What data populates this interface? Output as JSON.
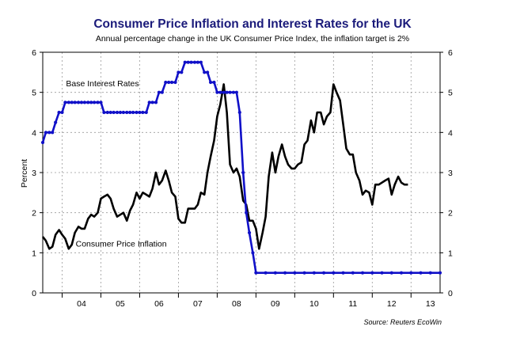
{
  "chart_data": {
    "type": "line",
    "title": "Consumer Price Inflation and Interest Rates for the UK",
    "subtitle": "Annual percentage change in the UK Consumer Price Index, the inflation target is 2%",
    "ylabel": "Percent",
    "source": "Source: Reuters EcoWin",
    "ylim": [
      0,
      6
    ],
    "xlim": [
      2003.5,
      2013.75
    ],
    "yticks": [
      "0",
      "1",
      "2",
      "3",
      "4",
      "5",
      "6"
    ],
    "xticks": [
      {
        "label": "04",
        "x": 2004.5
      },
      {
        "label": "05",
        "x": 2005.5
      },
      {
        "label": "06",
        "x": 2006.5
      },
      {
        "label": "07",
        "x": 2007.5
      },
      {
        "label": "08",
        "x": 2008.5
      },
      {
        "label": "09",
        "x": 2009.5
      },
      {
        "label": "10",
        "x": 2010.5
      },
      {
        "label": "11",
        "x": 2011.5
      },
      {
        "label": "12",
        "x": 2012.5
      },
      {
        "label": "13",
        "x": 2013.5
      }
    ],
    "grid": true,
    "series": [
      {
        "name": "Base Interest Rates",
        "color": "#1010c8",
        "marker": "dot",
        "points": [
          [
            2003.5,
            3.75
          ],
          [
            2003.58,
            4.0
          ],
          [
            2003.67,
            4.0
          ],
          [
            2003.75,
            4.0
          ],
          [
            2003.83,
            4.25
          ],
          [
            2003.92,
            4.5
          ],
          [
            2004.0,
            4.5
          ],
          [
            2004.08,
            4.75
          ],
          [
            2004.17,
            4.75
          ],
          [
            2004.25,
            4.75
          ],
          [
            2004.33,
            4.75
          ],
          [
            2004.42,
            4.75
          ],
          [
            2004.5,
            4.75
          ],
          [
            2004.58,
            4.75
          ],
          [
            2004.67,
            4.75
          ],
          [
            2004.75,
            4.75
          ],
          [
            2004.83,
            4.75
          ],
          [
            2004.92,
            4.75
          ],
          [
            2005.0,
            4.75
          ],
          [
            2005.08,
            4.5
          ],
          [
            2005.17,
            4.5
          ],
          [
            2005.25,
            4.5
          ],
          [
            2005.33,
            4.5
          ],
          [
            2005.42,
            4.5
          ],
          [
            2005.5,
            4.5
          ],
          [
            2005.58,
            4.5
          ],
          [
            2005.67,
            4.5
          ],
          [
            2005.75,
            4.5
          ],
          [
            2005.83,
            4.5
          ],
          [
            2005.92,
            4.5
          ],
          [
            2006.0,
            4.5
          ],
          [
            2006.08,
            4.5
          ],
          [
            2006.17,
            4.5
          ],
          [
            2006.25,
            4.75
          ],
          [
            2006.33,
            4.75
          ],
          [
            2006.42,
            4.75
          ],
          [
            2006.5,
            5.0
          ],
          [
            2006.58,
            5.0
          ],
          [
            2006.67,
            5.25
          ],
          [
            2006.75,
            5.25
          ],
          [
            2006.83,
            5.25
          ],
          [
            2006.92,
            5.25
          ],
          [
            2007.0,
            5.5
          ],
          [
            2007.08,
            5.5
          ],
          [
            2007.17,
            5.75
          ],
          [
            2007.25,
            5.75
          ],
          [
            2007.33,
            5.75
          ],
          [
            2007.42,
            5.75
          ],
          [
            2007.5,
            5.75
          ],
          [
            2007.58,
            5.75
          ],
          [
            2007.67,
            5.5
          ],
          [
            2007.75,
            5.5
          ],
          [
            2007.83,
            5.25
          ],
          [
            2007.92,
            5.25
          ],
          [
            2008.0,
            5.0
          ],
          [
            2008.08,
            5.0
          ],
          [
            2008.17,
            5.0
          ],
          [
            2008.25,
            5.0
          ],
          [
            2008.33,
            5.0
          ],
          [
            2008.42,
            5.0
          ],
          [
            2008.5,
            5.0
          ],
          [
            2008.58,
            4.5
          ],
          [
            2008.67,
            3.0
          ],
          [
            2008.75,
            2.0
          ],
          [
            2008.83,
            1.5
          ],
          [
            2008.92,
            1.0
          ],
          [
            2009.0,
            0.5
          ],
          [
            2009.25,
            0.5
          ],
          [
            2009.5,
            0.5
          ],
          [
            2009.75,
            0.5
          ],
          [
            2010.0,
            0.5
          ],
          [
            2010.25,
            0.5
          ],
          [
            2010.5,
            0.5
          ],
          [
            2010.75,
            0.5
          ],
          [
            2011.0,
            0.5
          ],
          [
            2011.25,
            0.5
          ],
          [
            2011.5,
            0.5
          ],
          [
            2011.75,
            0.5
          ],
          [
            2012.0,
            0.5
          ],
          [
            2012.25,
            0.5
          ],
          [
            2012.5,
            0.5
          ],
          [
            2012.75,
            0.5
          ],
          [
            2013.0,
            0.5
          ],
          [
            2013.25,
            0.5
          ],
          [
            2013.5,
            0.5
          ],
          [
            2013.75,
            0.5
          ]
        ]
      },
      {
        "name": "Consumer Price Inflation",
        "color": "#000000",
        "marker": "none",
        "points": [
          [
            2003.5,
            1.4
          ],
          [
            2003.58,
            1.3
          ],
          [
            2003.67,
            1.1
          ],
          [
            2003.75,
            1.15
          ],
          [
            2003.83,
            1.45
          ],
          [
            2003.92,
            1.57
          ],
          [
            2004.0,
            1.45
          ],
          [
            2004.08,
            1.35
          ],
          [
            2004.17,
            1.1
          ],
          [
            2004.25,
            1.2
          ],
          [
            2004.33,
            1.5
          ],
          [
            2004.42,
            1.65
          ],
          [
            2004.5,
            1.6
          ],
          [
            2004.58,
            1.6
          ],
          [
            2004.67,
            1.85
          ],
          [
            2004.75,
            1.95
          ],
          [
            2004.83,
            1.9
          ],
          [
            2004.92,
            2.0
          ],
          [
            2005.0,
            2.35
          ],
          [
            2005.08,
            2.4
          ],
          [
            2005.17,
            2.45
          ],
          [
            2005.25,
            2.35
          ],
          [
            2005.33,
            2.1
          ],
          [
            2005.42,
            1.9
          ],
          [
            2005.5,
            1.95
          ],
          [
            2005.58,
            2.0
          ],
          [
            2005.67,
            1.8
          ],
          [
            2005.75,
            2.05
          ],
          [
            2005.83,
            2.2
          ],
          [
            2005.92,
            2.5
          ],
          [
            2006.0,
            2.35
          ],
          [
            2006.08,
            2.5
          ],
          [
            2006.17,
            2.45
          ],
          [
            2006.25,
            2.4
          ],
          [
            2006.33,
            2.6
          ],
          [
            2006.42,
            3.0
          ],
          [
            2006.5,
            2.7
          ],
          [
            2006.58,
            2.8
          ],
          [
            2006.67,
            3.05
          ],
          [
            2006.75,
            2.8
          ],
          [
            2006.83,
            2.5
          ],
          [
            2006.92,
            2.4
          ],
          [
            2007.0,
            1.85
          ],
          [
            2007.08,
            1.75
          ],
          [
            2007.17,
            1.75
          ],
          [
            2007.25,
            2.1
          ],
          [
            2007.33,
            2.1
          ],
          [
            2007.42,
            2.1
          ],
          [
            2007.5,
            2.2
          ],
          [
            2007.58,
            2.5
          ],
          [
            2007.67,
            2.45
          ],
          [
            2007.75,
            3.0
          ],
          [
            2007.83,
            3.4
          ],
          [
            2007.92,
            3.8
          ],
          [
            2008.0,
            4.4
          ],
          [
            2008.08,
            4.7
          ],
          [
            2008.17,
            5.2
          ],
          [
            2008.25,
            4.5
          ],
          [
            2008.33,
            3.2
          ],
          [
            2008.42,
            3.0
          ],
          [
            2008.5,
            3.1
          ],
          [
            2008.58,
            2.9
          ],
          [
            2008.67,
            2.3
          ],
          [
            2008.75,
            2.2
          ],
          [
            2008.83,
            1.8
          ],
          [
            2008.92,
            1.8
          ],
          [
            2009.0,
            1.6
          ],
          [
            2009.08,
            1.1
          ],
          [
            2009.17,
            1.5
          ],
          [
            2009.25,
            1.9
          ],
          [
            2009.33,
            2.9
          ],
          [
            2009.42,
            3.5
          ],
          [
            2009.5,
            3.0
          ],
          [
            2009.58,
            3.4
          ],
          [
            2009.67,
            3.7
          ],
          [
            2009.75,
            3.4
          ],
          [
            2009.83,
            3.2
          ],
          [
            2009.92,
            3.1
          ],
          [
            2010.0,
            3.1
          ],
          [
            2010.08,
            3.2
          ],
          [
            2010.17,
            3.25
          ],
          [
            2010.25,
            3.7
          ],
          [
            2010.33,
            3.8
          ],
          [
            2010.42,
            4.3
          ],
          [
            2010.5,
            4.0
          ],
          [
            2010.58,
            4.5
          ],
          [
            2010.67,
            4.5
          ],
          [
            2010.75,
            4.2
          ],
          [
            2010.83,
            4.4
          ],
          [
            2010.92,
            4.5
          ],
          [
            2011.0,
            5.2
          ],
          [
            2011.08,
            5.0
          ],
          [
            2011.17,
            4.8
          ],
          [
            2011.25,
            4.2
          ],
          [
            2011.33,
            3.6
          ],
          [
            2011.42,
            3.45
          ],
          [
            2011.5,
            3.45
          ],
          [
            2011.58,
            3.0
          ],
          [
            2011.67,
            2.8
          ],
          [
            2011.75,
            2.45
          ],
          [
            2011.83,
            2.55
          ],
          [
            2011.92,
            2.5
          ],
          [
            2012.0,
            2.2
          ],
          [
            2012.08,
            2.7
          ],
          [
            2012.17,
            2.7
          ],
          [
            2012.25,
            2.75
          ],
          [
            2012.33,
            2.8
          ],
          [
            2012.42,
            2.85
          ],
          [
            2012.5,
            2.45
          ],
          [
            2012.58,
            2.7
          ],
          [
            2012.67,
            2.9
          ],
          [
            2012.75,
            2.75
          ],
          [
            2012.83,
            2.7
          ],
          [
            2012.92,
            2.7
          ]
        ]
      }
    ],
    "annotations": [
      {
        "text": "Base Interest Rates",
        "x": 2004.1,
        "y": 5.15
      },
      {
        "text": "Consumer Price Inflation",
        "x": 2004.35,
        "y": 1.15
      }
    ]
  }
}
